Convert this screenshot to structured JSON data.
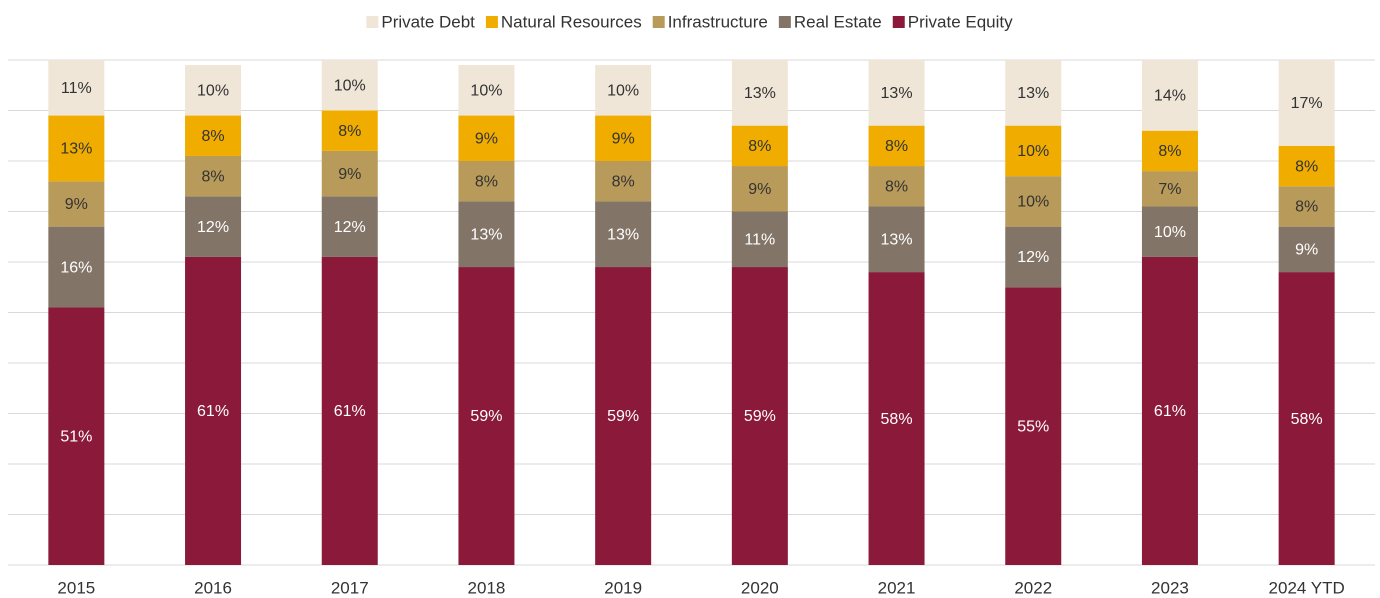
{
  "chart_data": {
    "type": "stacked_bar",
    "categories": [
      "2015",
      "2016",
      "2017",
      "2018",
      "2019",
      "2020",
      "2021",
      "2022",
      "2023",
      "2024 YTD"
    ],
    "series": [
      {
        "name": "Private Equity",
        "color": "#8b1a3a",
        "values": [
          51,
          61,
          61,
          59,
          59,
          59,
          58,
          55,
          61,
          58
        ],
        "value_labels": [
          "51%",
          "61%",
          "61%",
          "59%",
          "59%",
          "59%",
          "58%",
          "55%",
          "61%",
          "58%"
        ]
      },
      {
        "name": "Real Estate",
        "color": "#837468",
        "values": [
          16,
          12,
          12,
          13,
          13,
          11,
          13,
          12,
          10,
          9
        ],
        "value_labels": [
          "16%",
          "12%",
          "12%",
          "13%",
          "13%",
          "11%",
          "13%",
          "12%",
          "10%",
          "9%"
        ]
      },
      {
        "name": "Infrastructure",
        "color": "#b89a5a",
        "values": [
          9,
          8,
          9,
          8,
          8,
          9,
          8,
          10,
          7,
          8
        ],
        "value_labels": [
          "9%",
          "8%",
          "9%",
          "8%",
          "8%",
          "9%",
          "8%",
          "10%",
          "7%",
          "8%"
        ]
      },
      {
        "name": "Natural Resources",
        "color": "#f0ad00",
        "values": [
          13,
          8,
          8,
          9,
          9,
          8,
          8,
          10,
          8,
          8
        ],
        "value_labels": [
          "13%",
          "8%",
          "8%",
          "9%",
          "9%",
          "8%",
          "8%",
          "10%",
          "8%",
          "8%"
        ]
      },
      {
        "name": "Private Debt",
        "color": "#efe6d8",
        "values": [
          11,
          10,
          10,
          10,
          10,
          13,
          13,
          13,
          14,
          17
        ],
        "value_labels": [
          "11%",
          "10%",
          "10%",
          "10%",
          "10%",
          "13%",
          "13%",
          "13%",
          "14%",
          "17%"
        ]
      }
    ],
    "ylim": [
      0,
      100
    ],
    "yticks": [
      0,
      10,
      20,
      30,
      40,
      50,
      60,
      70,
      80,
      90,
      100
    ],
    "grid": true,
    "legend": "top"
  }
}
